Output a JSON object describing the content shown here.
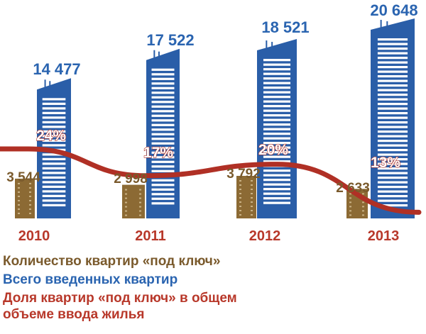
{
  "colors": {
    "total_bar": "#2a5ea8",
    "turnkey_bar": "#8c6a34",
    "share_line": "#b03025",
    "total_text": "#2a64b0",
    "turnkey_text": "#7a5a2c",
    "share_text": "#b8382a",
    "year_text": "#b8382a"
  },
  "legend": {
    "turnkey": "Количество квартир «под ключ»",
    "total": "Всего введенных квартир",
    "share_line1": "Доля квартир «под ключ» в общем",
    "share_line2": "объеме ввода жилья"
  },
  "chart_data": {
    "type": "bar",
    "categories": [
      "2010",
      "2011",
      "2012",
      "2013"
    ],
    "series": [
      {
        "name": "Количество квартир «под ключ»",
        "values": [
          3544,
          2998,
          3792,
          2633
        ],
        "labels": [
          "3 544",
          "2 998",
          "3 792",
          "2 633"
        ]
      },
      {
        "name": "Всего введенных квартир",
        "values": [
          14477,
          17522,
          18521,
          20648
        ],
        "labels": [
          "14 477",
          "17 522",
          "18 521",
          "20 648"
        ]
      },
      {
        "name": "Доля квартир «под ключ» в общем объеме ввода жилья",
        "values": [
          24,
          17,
          20,
          13
        ],
        "labels": [
          "24%",
          "17%",
          "20%",
          "13%"
        ]
      }
    ]
  }
}
